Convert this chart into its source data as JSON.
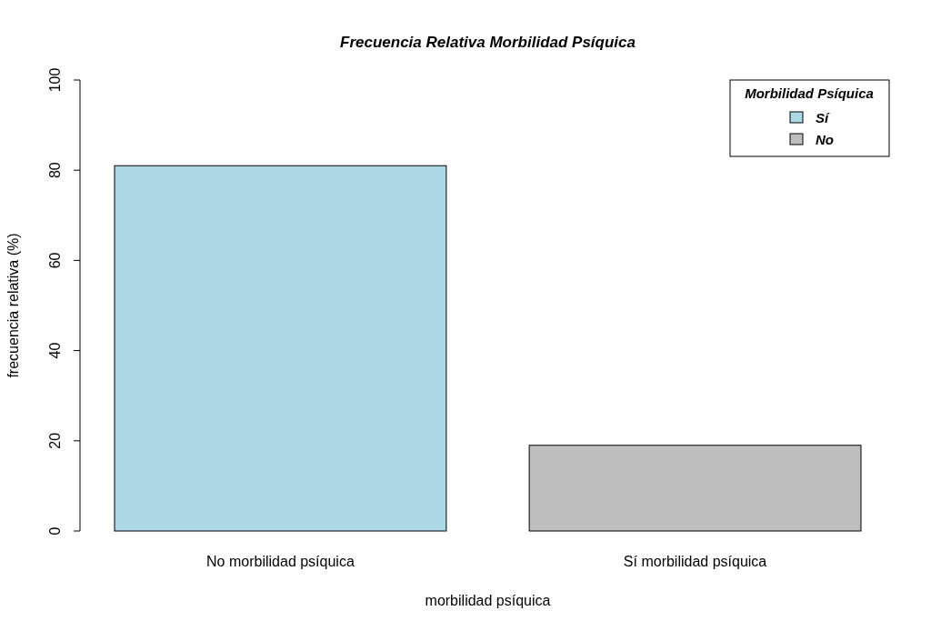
{
  "chart_data": {
    "type": "bar",
    "title": "Frecuencia Relativa Morbilidad Psíquica",
    "xlabel": "morbilidad psíquica",
    "ylabel": "frecuencia relativa (%)",
    "legend_title": "Morbilidad Psíquica",
    "categories": [
      "No morbilidad psíquica",
      "Sí morbilidad psíquica"
    ],
    "series": [
      {
        "name": "Sí",
        "color": "#add8e6",
        "values": [
          81,
          null
        ]
      },
      {
        "name": "No",
        "color": "#bebebe",
        "values": [
          null,
          19
        ]
      }
    ],
    "ylim": [
      0,
      100
    ],
    "yticks": [
      0,
      20,
      40,
      60,
      80,
      100
    ],
    "grid": false,
    "legend": "top right"
  }
}
